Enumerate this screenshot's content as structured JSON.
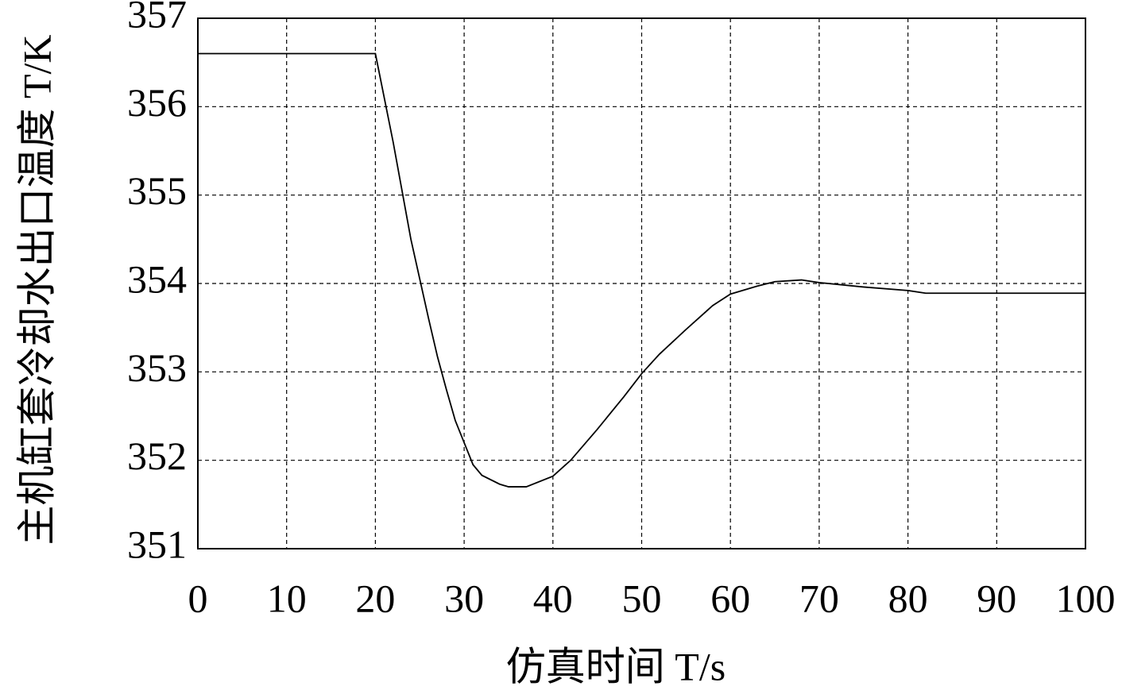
{
  "chart_data": {
    "type": "line",
    "xlabel": "仿真时间 T/s",
    "ylabel": "主机缸套冷却水出口温度 T/K",
    "x": [
      0,
      20,
      22,
      24,
      25,
      26,
      27,
      28,
      29,
      30,
      31,
      32,
      34,
      35,
      37,
      40,
      42,
      45,
      48,
      50,
      52,
      55,
      58,
      60,
      63,
      65,
      68,
      70,
      75,
      80,
      82,
      90,
      100
    ],
    "values": [
      356.6,
      356.6,
      355.6,
      354.5,
      354.05,
      353.6,
      353.17,
      352.8,
      352.45,
      352.2,
      351.95,
      351.83,
      351.73,
      351.7,
      351.7,
      351.82,
      352.0,
      352.35,
      352.72,
      352.98,
      353.2,
      353.48,
      353.75,
      353.88,
      353.97,
      354.02,
      354.04,
      354.01,
      353.96,
      353.92,
      353.89,
      353.89,
      353.89
    ],
    "color": "#000000",
    "xlim": [
      0,
      100
    ],
    "xticks": [
      0,
      10,
      20,
      30,
      40,
      50,
      60,
      70,
      80,
      90,
      100
    ],
    "ylim": [
      351,
      357
    ],
    "yticks": [
      351,
      352,
      353,
      354,
      355,
      356,
      357
    ],
    "grid": true
  }
}
